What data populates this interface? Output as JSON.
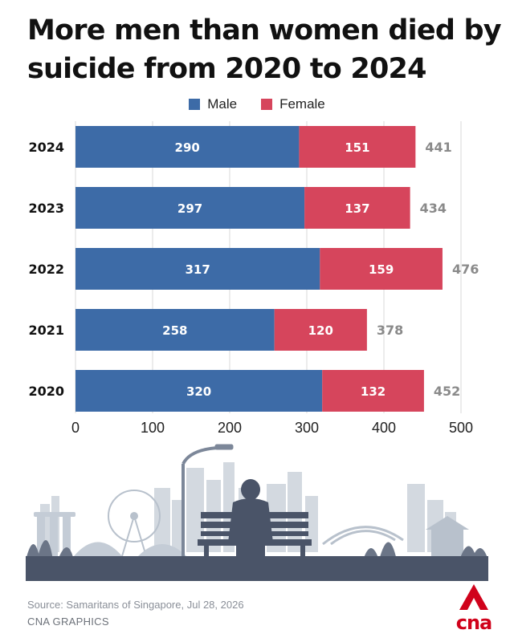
{
  "title": "More men than women died by suicide from 2020 to 2024",
  "legend": [
    {
      "label": "Male",
      "color": "#3d6ba7"
    },
    {
      "label": "Female",
      "color": "#d6455c"
    }
  ],
  "chart_data": {
    "type": "bar",
    "orientation": "horizontal",
    "stacked": true,
    "categories": [
      "2024",
      "2023",
      "2022",
      "2021",
      "2020"
    ],
    "series": [
      {
        "name": "Male",
        "color": "#3d6ba7",
        "values": [
          290,
          297,
          317,
          258,
          320
        ]
      },
      {
        "name": "Female",
        "color": "#d6455c",
        "values": [
          151,
          137,
          159,
          120,
          132
        ]
      }
    ],
    "totals": [
      441,
      434,
      476,
      378,
      452
    ],
    "xlim": [
      0,
      500
    ],
    "xticks": [
      0,
      100,
      200,
      300,
      400,
      500
    ],
    "grid": true,
    "legend_position": "top-center"
  },
  "footer": {
    "source": "Source: Samaritans of Singapore, Jul 28, 2026",
    "credit": "CNA GRAPHICS",
    "logo_text": "cna"
  },
  "colors": {
    "illustration": "#4a5468",
    "skyline": "#d3d9e0"
  }
}
